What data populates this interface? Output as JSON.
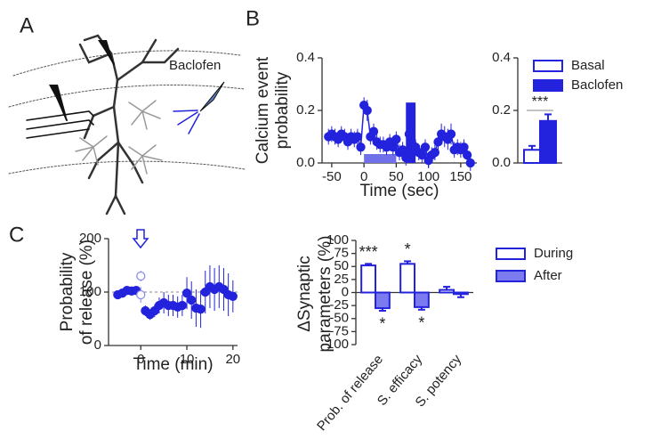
{
  "panel_labels": [
    "A",
    "B",
    "C"
  ],
  "drug_label": "Baclofen",
  "chart_data": [
    {
      "type": "line",
      "connect": true,
      "color": "#2323dd",
      "xlabel": "Time (sec)",
      "ylabel": [
        "Calcium event",
        "probability"
      ],
      "xlim": [
        -65,
        175
      ],
      "xticks": [
        -50,
        0,
        50,
        100,
        150
      ],
      "ylim": [
        0,
        0.4
      ],
      "yticks": [
        {
          "value": 0,
          "label": "0.0"
        },
        {
          "value": 0.2,
          "label": "0.2"
        },
        {
          "value": 0.4,
          "label": "0.4"
        }
      ],
      "highlight": {
        "x": [
          65,
          80
        ],
        "value": 0.23
      },
      "drug_period": [
        0,
        50
      ],
      "series": [
        {
          "color": "#2323dd",
          "x": [
            -55,
            -50,
            -45,
            -40,
            -35,
            -30,
            -25,
            -20,
            -15,
            -10,
            -5,
            0,
            5,
            10,
            15,
            20,
            25,
            30,
            35,
            40,
            45,
            50,
            55,
            60,
            65,
            70,
            75,
            80,
            85,
            90,
            95,
            100,
            105,
            110,
            115,
            120,
            125,
            130,
            135,
            140,
            145,
            150,
            155,
            160,
            165
          ],
          "values": [
            0.1,
            0.11,
            0.1,
            0.09,
            0.11,
            0.1,
            0.08,
            0.1,
            0.09,
            0.1,
            0.06,
            0.22,
            0.2,
            0.1,
            0.12,
            0.08,
            0.07,
            0.07,
            0.06,
            0.08,
            0.06,
            0.09,
            0.04,
            0.05,
            0.02,
            0.11,
            0.07,
            0.06,
            0.04,
            0.03,
            0.06,
            0.01,
            0.03,
            0.04,
            0.08,
            0.11,
            0.1,
            0.09,
            0.11,
            0.05,
            0.06,
            0.05,
            0.06,
            0.03,
            0
          ],
          "errors": [
            0.03,
            0.03,
            0.03,
            0.03,
            0.03,
            0.03,
            0.03,
            0.03,
            0.03,
            0.03,
            0.03,
            0.03,
            0.04,
            0.03,
            0.03,
            0.03,
            0.03,
            0.03,
            0.03,
            0.03,
            0.03,
            0.03,
            0.03,
            0.03,
            0.03,
            0.03,
            0.03,
            0.03,
            0.03,
            0.03,
            0.03,
            0.03,
            0.03,
            0.03,
            0.03,
            0.04,
            0.04,
            0.04,
            0.04,
            0.03,
            0.03,
            0.03,
            0.03,
            0.03,
            0.03
          ]
        }
      ]
    },
    {
      "type": "bar",
      "legend": "upper right",
      "ylim": [
        0,
        0.4
      ],
      "yticks": [
        {
          "value": 0,
          "label": "0.0"
        },
        {
          "value": 0.2,
          "label": "0.2"
        },
        {
          "value": 0.4,
          "label": "0.4"
        }
      ],
      "significance": "***",
      "series": [
        {
          "name": "Basal",
          "color": "#2323dd",
          "hollow": true,
          "values": [
            0.05
          ],
          "errors": [
            0.015
          ]
        },
        {
          "name": "Baclofen",
          "color": "#2323dd",
          "hollow": false,
          "values": [
            0.16
          ],
          "errors": [
            0.025
          ]
        }
      ]
    },
    {
      "type": "line",
      "connect": false,
      "xlabel": "Time (min)",
      "ylabel": [
        "Probability",
        "of release (%)"
      ],
      "xlim": [
        -7,
        21
      ],
      "xticks": [
        0,
        10,
        20
      ],
      "ylim": [
        0,
        200
      ],
      "yticks": [
        0,
        100,
        200
      ],
      "reference": 100,
      "series": [
        {
          "color": "#2323dd",
          "hollow": false,
          "x": [
            -5,
            -4,
            -3,
            -2,
            -1,
            1,
            2,
            3,
            4,
            5,
            6,
            7,
            8,
            9,
            10,
            11,
            12,
            13,
            14,
            15,
            16,
            17,
            18,
            19,
            20
          ],
          "values": [
            95,
            98,
            103,
            102,
            103,
            65,
            58,
            65,
            75,
            80,
            75,
            75,
            72,
            75,
            98,
            85,
            70,
            68,
            100,
            110,
            105,
            110,
            105,
            95,
            92
          ],
          "errors": [
            8,
            8,
            8,
            8,
            8,
            10,
            10,
            12,
            15,
            20,
            20,
            20,
            20,
            20,
            30,
            35,
            35,
            35,
            40,
            40,
            40,
            40,
            40,
            40,
            30
          ]
        },
        {
          "color": "#8c8cf0",
          "hollow": true,
          "x": [
            0,
            0
          ],
          "values": [
            130,
            95
          ],
          "errors": [
            10,
            15
          ]
        }
      ]
    },
    {
      "type": "bar",
      "legend": "right",
      "ylabel": [
        "ΔSynaptic",
        "parameters (%)"
      ],
      "categories": [
        "Prob. of release",
        "S. efficacy",
        "S. potency"
      ],
      "ylim": [
        -100,
        100
      ],
      "yticks": [
        -100,
        -75,
        -50,
        -25,
        0,
        25,
        50,
        75,
        100
      ],
      "series": [
        {
          "name": "During",
          "color": "#2323dd",
          "hollow": true,
          "values": [
            52,
            55,
            5
          ],
          "errors": [
            3,
            5,
            6
          ],
          "significance": [
            "***",
            "*",
            null
          ]
        },
        {
          "name": "After",
          "color": "#2323dd",
          "fill": "#7b7bef",
          "hollow": false,
          "values": [
            -30,
            -28,
            -3
          ],
          "errors": [
            5,
            5,
            6
          ],
          "significance": [
            "*",
            "*",
            null
          ]
        }
      ]
    }
  ]
}
